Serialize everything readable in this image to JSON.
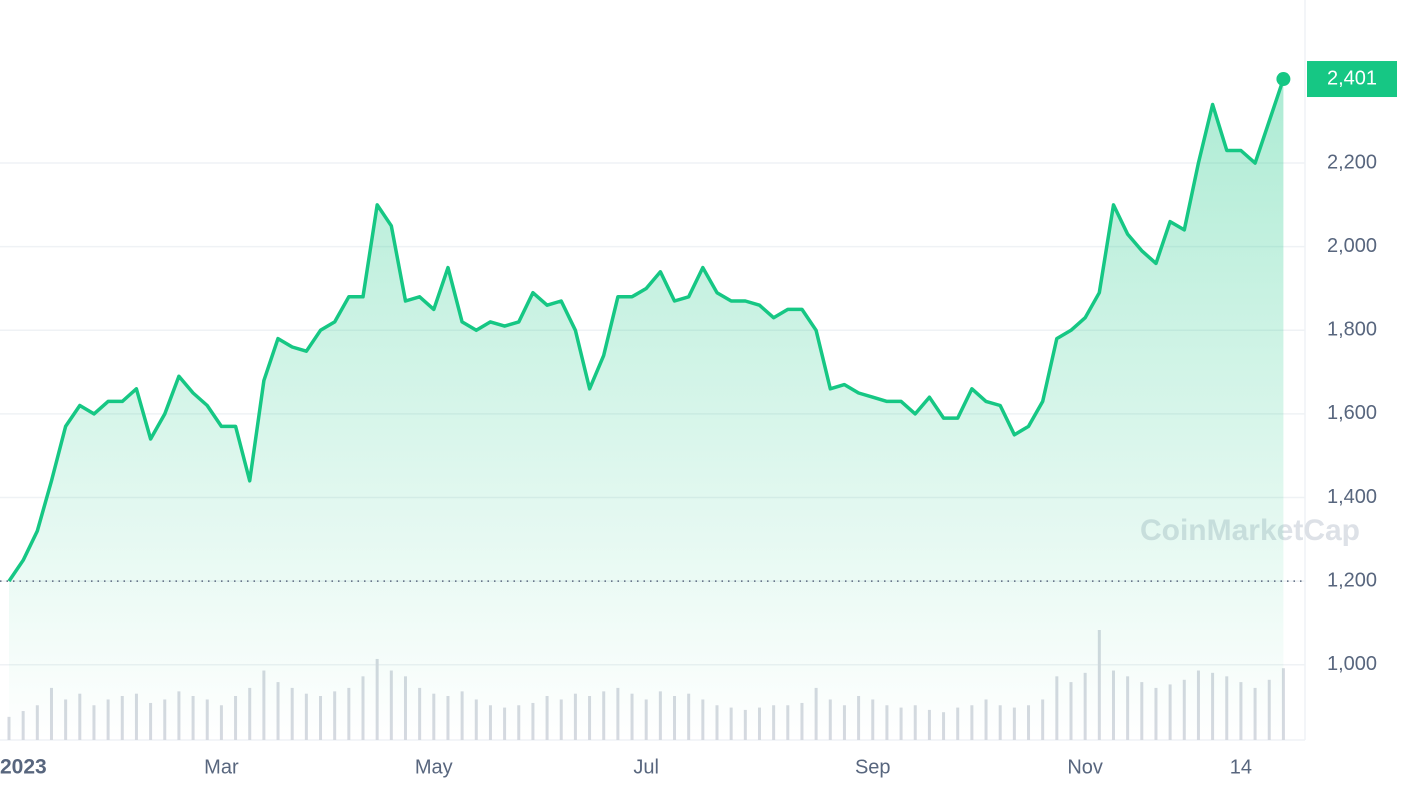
{
  "chart_data": {
    "type": "line",
    "categories": [
      "2023",
      null,
      null,
      null,
      null,
      null,
      null,
      null,
      null,
      null,
      null,
      null,
      null,
      null,
      null,
      "Mar",
      null,
      null,
      null,
      null,
      null,
      null,
      null,
      null,
      null,
      null,
      null,
      null,
      null,
      null,
      "May",
      null,
      null,
      null,
      null,
      null,
      null,
      null,
      null,
      null,
      null,
      null,
      null,
      null,
      null,
      "Jul",
      null,
      null,
      null,
      null,
      null,
      null,
      null,
      null,
      null,
      null,
      null,
      null,
      null,
      null,
      null,
      "Sep",
      null,
      null,
      null,
      null,
      null,
      null,
      null,
      null,
      null,
      null,
      null,
      null,
      null,
      null,
      "Nov",
      null,
      null,
      null,
      null,
      null,
      null,
      null,
      null,
      null,
      null,
      "14",
      null,
      null,
      null
    ],
    "series": [
      {
        "color": "#16c784",
        "values": [
          1200,
          1250,
          1320,
          1440,
          1570,
          1620,
          1600,
          1630,
          1630,
          1660,
          1540,
          1600,
          1690,
          1650,
          1620,
          1570,
          1570,
          1440,
          1680,
          1780,
          1760,
          1750,
          1800,
          1820,
          1880,
          1880,
          2100,
          2050,
          1870,
          1880,
          1850,
          1950,
          1820,
          1800,
          1820,
          1810,
          1820,
          1890,
          1860,
          1870,
          1800,
          1660,
          1740,
          1880,
          1880,
          1900,
          1940,
          1870,
          1880,
          1950,
          1890,
          1870,
          1870,
          1860,
          1830,
          1850,
          1850,
          1800,
          1660,
          1670,
          1650,
          1640,
          1630,
          1630,
          1600,
          1640,
          1590,
          1590,
          1660,
          1630,
          1620,
          1550,
          1570,
          1630,
          1780,
          1800,
          1830,
          1890,
          2100,
          2030,
          1990,
          1960,
          2060,
          2040,
          2200,
          2340,
          2230,
          2230,
          2200,
          2300,
          2401
        ]
      }
    ],
    "last_label": "2,401",
    "volume": {
      "color": "#d5d9e0",
      "values": [
        20,
        25,
        30,
        45,
        35,
        40,
        30,
        35,
        38,
        40,
        32,
        35,
        42,
        38,
        35,
        30,
        38,
        45,
        60,
        50,
        45,
        40,
        38,
        42,
        45,
        55,
        70,
        60,
        55,
        45,
        40,
        38,
        42,
        35,
        30,
        28,
        30,
        32,
        38,
        35,
        40,
        38,
        42,
        45,
        40,
        35,
        42,
        38,
        40,
        35,
        30,
        28,
        26,
        28,
        30,
        30,
        32,
        45,
        35,
        30,
        38,
        35,
        30,
        28,
        30,
        26,
        24,
        28,
        30,
        35,
        30,
        28,
        30,
        35,
        55,
        50,
        58,
        95,
        60,
        55,
        50,
        45,
        48,
        52,
        60,
        58,
        55,
        50,
        45,
        52,
        62
      ]
    },
    "ylim": [
      820,
      2590
    ],
    "yticks": [
      {
        "value": 1000,
        "label": "1,000"
      },
      {
        "value": 1200,
        "label": "1,200"
      },
      {
        "value": 1400,
        "label": "1,400"
      },
      {
        "value": 1600,
        "label": "1,600"
      },
      {
        "value": 1800,
        "label": "1,800"
      },
      {
        "value": 2000,
        "label": "2,000"
      },
      {
        "value": 2200,
        "label": "2,200"
      }
    ],
    "grid": true,
    "watermark": "CoinMarketCap"
  }
}
